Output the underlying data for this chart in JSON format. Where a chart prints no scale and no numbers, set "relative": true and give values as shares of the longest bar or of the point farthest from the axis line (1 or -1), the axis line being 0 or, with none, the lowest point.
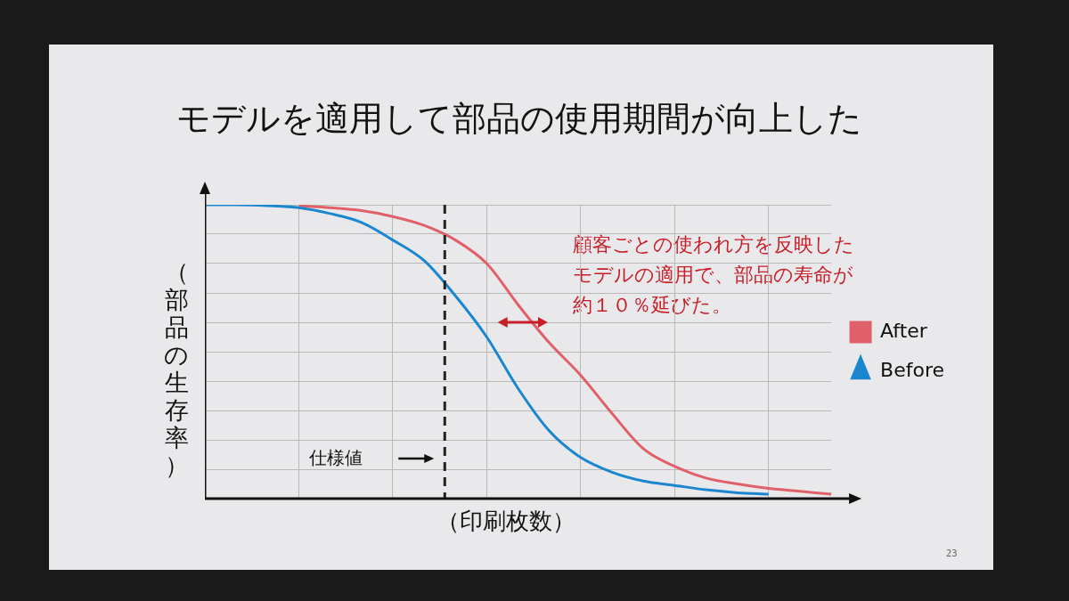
{
  "chart_data": {
    "type": "line",
    "title": "モデルを適用して部品の使用期間が向上した",
    "xlabel": "（印刷枚数）",
    "ylabel": "（部品の生存率）",
    "relative": true,
    "categories": [
      null,
      null,
      null,
      null,
      null,
      null,
      null,
      null,
      null,
      null,
      null,
      null,
      null,
      null,
      null,
      null,
      null,
      null,
      null,
      null,
      null
    ],
    "series": [
      {
        "name": "After",
        "color": "#e0606a",
        "values": [
          null,
          null,
          null,
          0.997,
          0.99,
          0.98,
          0.96,
          0.93,
          0.88,
          0.8,
          0.66,
          0.53,
          0.42,
          0.29,
          0.17,
          0.11,
          0.07,
          0.05,
          0.035,
          0.025,
          0.015
        ]
      },
      {
        "name": "Before",
        "color": "#1a86d0",
        "values": [
          1.0,
          1.0,
          0.997,
          0.99,
          0.97,
          0.94,
          0.88,
          0.81,
          0.69,
          0.55,
          0.375,
          0.23,
          0.14,
          0.09,
          0.06,
          0.045,
          0.03,
          0.02,
          0.015,
          null,
          null
        ]
      }
    ],
    "annotations": [
      "顧客ごとの使われ方を反映したモデルの適用で、部品の寿命が約１０％延びた。",
      "仕様値",
      "23"
    ],
    "grid": true,
    "legend": "right",
    "marker": "none",
    "line_style": "solid"
  }
}
